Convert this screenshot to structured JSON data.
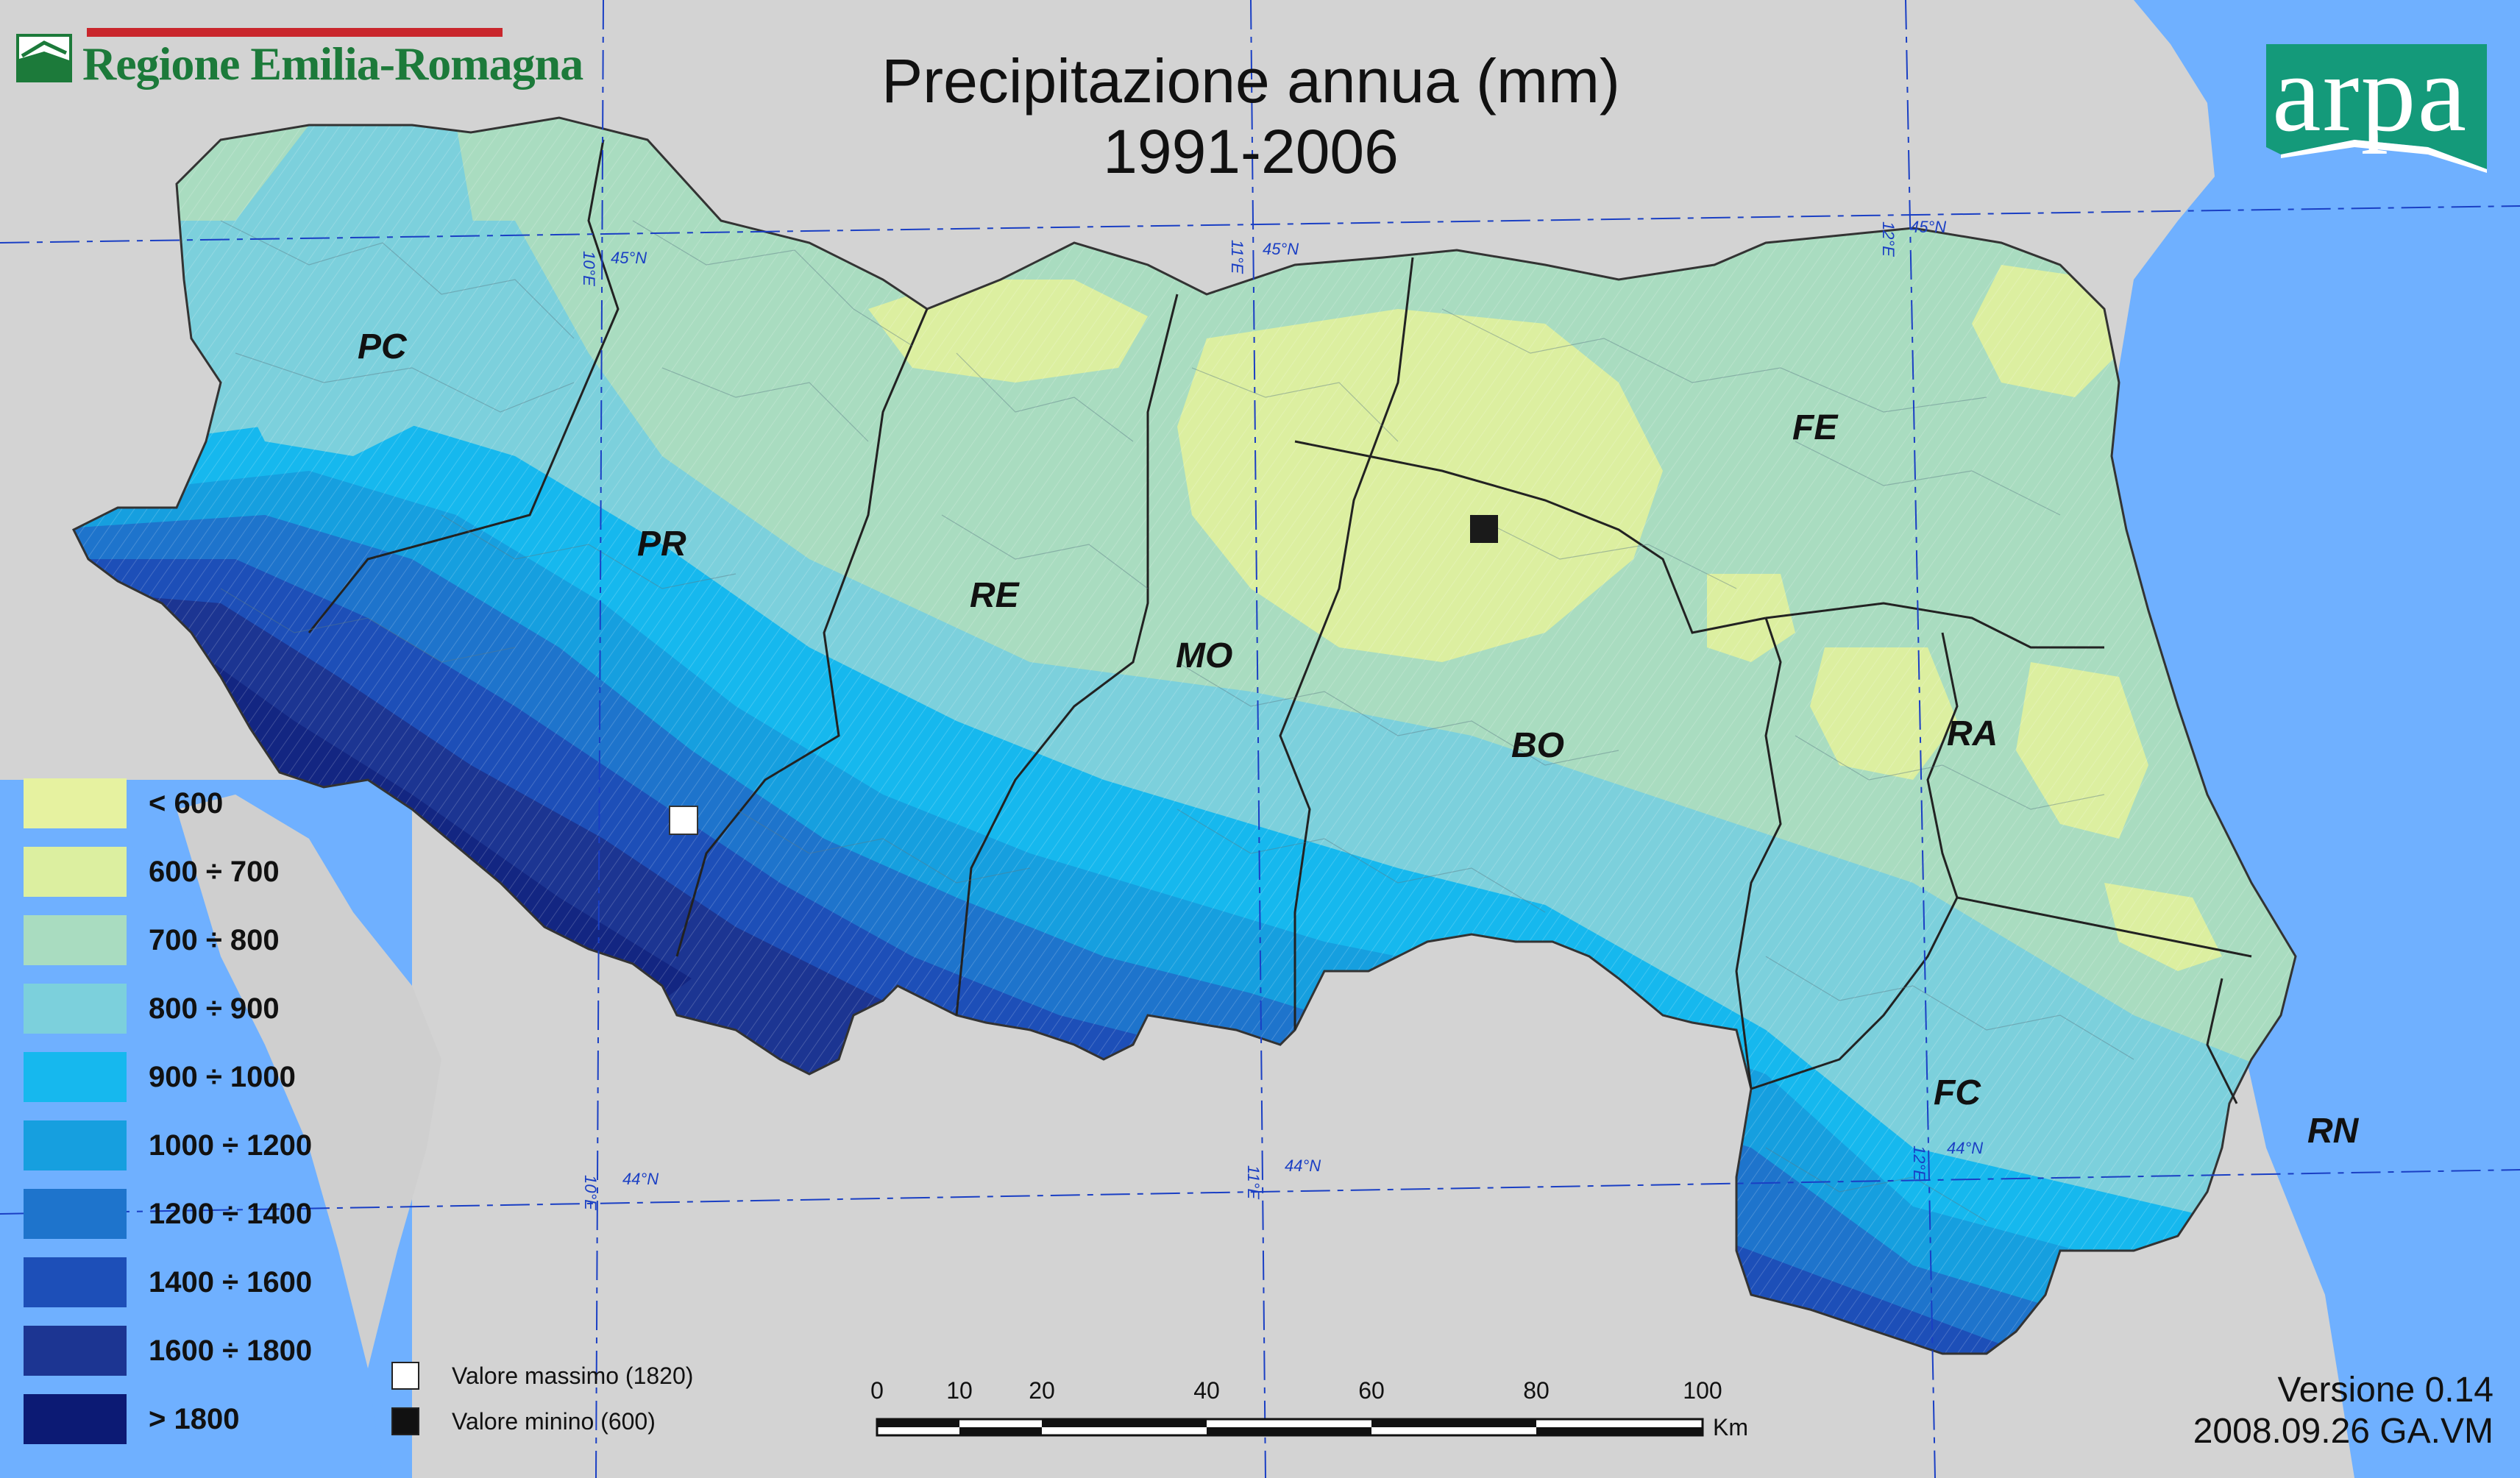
{
  "title": {
    "line1": "Precipitazione annua (mm)",
    "line2": "1991-2006"
  },
  "logos": {
    "region_name": "Regione Emilia-Romagna",
    "agency_name": "arpa"
  },
  "provinces": [
    {
      "code": "PC"
    },
    {
      "code": "PR"
    },
    {
      "code": "RE"
    },
    {
      "code": "MO"
    },
    {
      "code": "BO"
    },
    {
      "code": "FE"
    },
    {
      "code": "RA"
    },
    {
      "code": "FC"
    },
    {
      "code": "RN"
    }
  ],
  "legend": [
    {
      "label": "< 600",
      "color": "#e6f2a0"
    },
    {
      "label": "600 ÷ 700",
      "color": "#dcefa0"
    },
    {
      "label": "700 ÷ 800",
      "color": "#a9dcc0"
    },
    {
      "label": "800 ÷ 900",
      "color": "#7cd0dc"
    },
    {
      "label": "900 ÷ 1000",
      "color": "#16b8ee"
    },
    {
      "label": "1000 ÷ 1200",
      "color": "#169fdf"
    },
    {
      "label": "1200 ÷ 1400",
      "color": "#1e74cc"
    },
    {
      "label": "1400 ÷ 1600",
      "color": "#1d4fb8"
    },
    {
      "label": "1600 ÷ 1800",
      "color": "#1c3592"
    },
    {
      "label": "> 1800",
      "color": "#0c1a74"
    }
  ],
  "markers": {
    "max": {
      "label": "Valore massimo (1820)",
      "color": "#ffffff"
    },
    "min": {
      "label": "Valore minino (600)",
      "color": "#111111"
    }
  },
  "scale_bar": {
    "ticks": [
      "0",
      "10",
      "20",
      "40",
      "60",
      "80",
      "100"
    ],
    "unit": "Km"
  },
  "grid_labels": {
    "lon_10": "10°E",
    "lon_11": "11°E",
    "lon_12": "12°E",
    "lat_45": "45°N",
    "lat_44": "44°N"
  },
  "version": {
    "line1": "Versione 0.14",
    "line2": "2008.09.26 GA.VM"
  },
  "colors": {
    "sea": "#6fb0ff",
    "land_outside": "#d3d3d3",
    "grid": "#1a3fc4"
  }
}
